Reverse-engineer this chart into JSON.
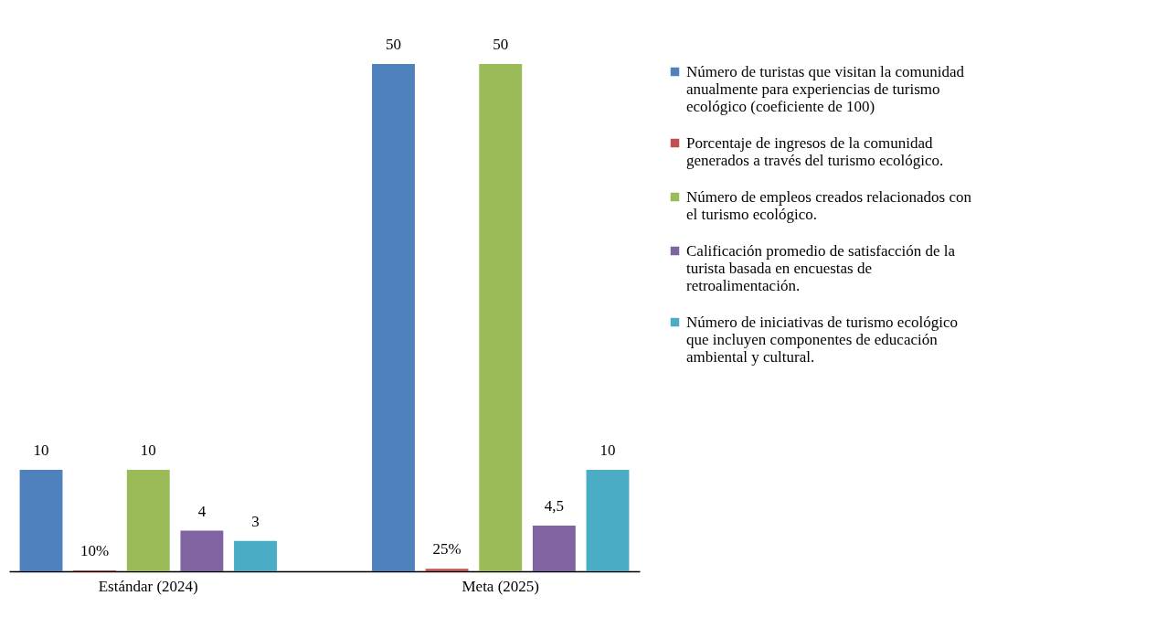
{
  "chart_data": {
    "type": "bar",
    "categories": [
      "Estándar (2024)",
      "Meta (2025)"
    ],
    "legend": "right",
    "series": [
      {
        "name": "Número de turistas que visitan la comunidad anualmente para experiencias de turismo ecológico (coeficiente de 100)",
        "color": "#4f81bd",
        "values": [
          10,
          50
        ],
        "value_labels": [
          "10",
          "50"
        ]
      },
      {
        "name": "Porcentaje de ingresos de la comunidad generados a través del turismo ecológico.",
        "color": "#c0504d",
        "values": [
          0.1,
          0.25
        ],
        "value_labels": [
          "10%",
          "25%"
        ]
      },
      {
        "name": "Número de empleos creados relacionados con el turismo ecológico.",
        "color": "#9bbb59",
        "values": [
          10,
          50
        ],
        "value_labels": [
          "10",
          "50"
        ]
      },
      {
        "name": "Calificación promedio de satisfacción de la turista basada en encuestas de retroalimentación.",
        "color": "#8064a2",
        "values": [
          4,
          4.5
        ],
        "value_labels": [
          "4",
          "4,5"
        ]
      },
      {
        "name": "Número de iniciativas de turismo ecológico que incluyen componentes de educación ambiental y cultural.",
        "color": "#4bacc6",
        "values": [
          3,
          10
        ],
        "value_labels": [
          "3",
          "10"
        ]
      }
    ]
  }
}
